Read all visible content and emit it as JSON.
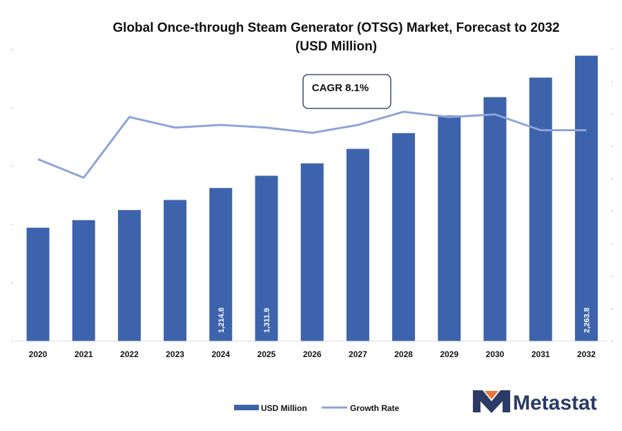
{
  "chart_data": {
    "type": "bar",
    "title": "Global Once-through Steam Generator (OTSG) Market, Forecast to 2032",
    "subtitle": "(USD Million)",
    "categories": [
      "2020",
      "2021",
      "2022",
      "2023",
      "2024",
      "2025",
      "2026",
      "2027",
      "2028",
      "2029",
      "2030",
      "2031",
      "2032"
    ],
    "series": [
      {
        "name": "USD Million",
        "type": "bar",
        "color": "#3d63ac",
        "values": [
          900,
          960,
          1040,
          1120,
          1214.8,
          1311.9,
          1410,
          1525,
          1650,
          1790,
          1935,
          2090,
          2263.8
        ],
        "data_labels": [
          "",
          "",
          "",
          "",
          "1,214.8",
          "1,311.9",
          "",
          "",
          "",
          "",
          "",
          "",
          "2,263.8"
        ]
      },
      {
        "name": "Growth Rate",
        "type": "line",
        "color": "#8fa3d8",
        "values": [
          6.9,
          6.2,
          8.5,
          8.1,
          8.2,
          8.1,
          7.9,
          8.2,
          8.7,
          8.5,
          8.6,
          8.0,
          8.0
        ]
      }
    ],
    "ylim": [
      0,
      2300
    ],
    "y2lim": [
      0,
      11
    ],
    "legend": "bottom",
    "grid": false
  },
  "annotation": {
    "cagr": "CAGR 8.1%"
  },
  "brand": {
    "name": "Metastat",
    "icon": "metastat-m-logo-icon"
  }
}
